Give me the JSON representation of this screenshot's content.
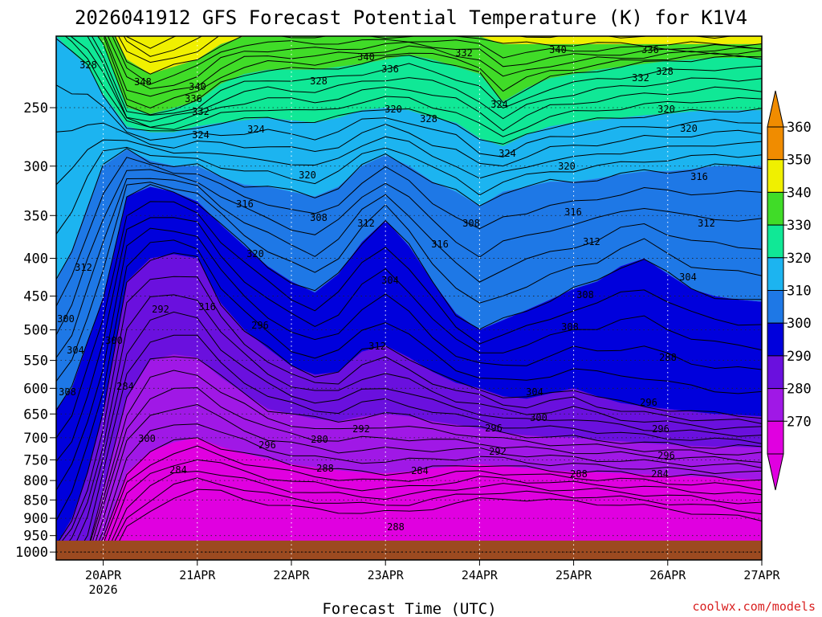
{
  "chart_data": {
    "type": "heatmap",
    "title": "2026041912 GFS Forecast Potential Temperature (K) for K1V4",
    "xlabel": "Forecast Time (UTC)",
    "ylabel": "",
    "credit": "coolwx.com/models",
    "x_ticks": [
      {
        "label": "20APR",
        "sub": "2026",
        "t": 12
      },
      {
        "label": "21APR",
        "sub": "",
        "t": 36
      },
      {
        "label": "22APR",
        "sub": "",
        "t": 60
      },
      {
        "label": "23APR",
        "sub": "",
        "t": 84
      },
      {
        "label": "24APR",
        "sub": "",
        "t": 108
      },
      {
        "label": "25APR",
        "sub": "",
        "t": 132
      },
      {
        "label": "26APR",
        "sub": "",
        "t": 156
      },
      {
        "label": "27APR",
        "sub": "",
        "t": 180
      }
    ],
    "xlim_hours": [
      0,
      180
    ],
    "y_ticks": [
      250,
      300,
      350,
      400,
      450,
      500,
      550,
      600,
      650,
      700,
      750,
      800,
      850,
      900,
      950,
      1000
    ],
    "ylim_hPa": [
      200,
      1025
    ],
    "y_scale": "log-pressure",
    "colorbar": {
      "levels": [
        270,
        280,
        290,
        300,
        310,
        320,
        330,
        340,
        350,
        360
      ],
      "colors": [
        "#e000e0",
        "#a018e6",
        "#6a10de",
        "#0000dc",
        "#1e78e6",
        "#1cb4f0",
        "#10e896",
        "#40dc28",
        "#f0f000",
        "#f08c00"
      ],
      "under_color": "#e000e0",
      "over_color": "#f08c00"
    },
    "ground": {
      "color": "#9c4a20",
      "top_pressure_hPa": 965
    },
    "contour_interval_K": 2,
    "contour_labels": [
      "328",
      "348",
      "340",
      "336",
      "332",
      "340",
      "336",
      "332",
      "340",
      "336",
      "332",
      "328",
      "328",
      "324",
      "320",
      "328",
      "324",
      "320",
      "320",
      "324",
      "320",
      "324",
      "320",
      "316",
      "316",
      "316",
      "308",
      "312",
      "308",
      "316",
      "312",
      "312",
      "312",
      "320",
      "304",
      "304",
      "308",
      "316",
      "292",
      "296",
      "300",
      "308",
      "304",
      "312",
      "288",
      "300",
      "304",
      "308",
      "284",
      "296",
      "300",
      "296",
      "300",
      "280",
      "292",
      "296",
      "296",
      "292",
      "296",
      "284",
      "288",
      "288",
      "284",
      "284",
      "288",
      "292",
      "276",
      "280"
    ],
    "profiles": [
      {
        "t": 0,
        "p": {
          "270": null,
          "280": null,
          "290": null,
          "300": 980,
          "310": 640,
          "320": 430,
          "330": 200,
          "340": 180,
          "350": 170,
          "360": 160
        }
      },
      {
        "t": 4,
        "p": {
          "270": null,
          "280": null,
          "290": null,
          "300": 900,
          "310": 600,
          "320": 390,
          "330": 210,
          "340": 185,
          "350": 170,
          "360": 160
        }
      },
      {
        "t": 8,
        "p": {
          "270": null,
          "280": null,
          "290": 990,
          "300": 780,
          "310": 520,
          "320": 340,
          "330": 220,
          "340": 190,
          "350": 175,
          "360": 165
        }
      },
      {
        "t": 12,
        "p": {
          "270": null,
          "280": 960,
          "290": 820,
          "300": 650,
          "310": 450,
          "320": 300,
          "330": 240,
          "340": 205,
          "350": 185,
          "360": 170
        }
      },
      {
        "t": 18,
        "p": {
          "270": 930,
          "280": 780,
          "290": 620,
          "300": 430,
          "310": 330,
          "320": 285,
          "330": 265,
          "340": 250,
          "350": 215,
          "360": 190
        }
      },
      {
        "t": 24,
        "p": {
          "270": 880,
          "280": 730,
          "290": 550,
          "300": 400,
          "310": 320,
          "320": 295,
          "330": 270,
          "340": 255,
          "350": 225,
          "360": 195
        }
      },
      {
        "t": 30,
        "p": {
          "270": 840,
          "280": 710,
          "290": 540,
          "300": 395,
          "310": 325,
          "320": 300,
          "330": 270,
          "340": 250,
          "350": 220,
          "360": 190
        }
      },
      {
        "t": 36,
        "p": {
          "270": 825,
          "280": 700,
          "290": 545,
          "300": 400,
          "310": 335,
          "320": 300,
          "330": 265,
          "340": 245,
          "350": 215,
          "360": 185
        }
      },
      {
        "t": 42,
        "p": {
          "270": 830,
          "280": 720,
          "290": 580,
          "300": 460,
          "310": 360,
          "320": 310,
          "330": 262,
          "340": 232,
          "350": 205,
          "360": 180
        }
      },
      {
        "t": 48,
        "p": {
          "270": 845,
          "280": 735,
          "290": 610,
          "300": 500,
          "310": 385,
          "320": 318,
          "330": 260,
          "340": 225,
          "350": 200,
          "360": 180
        }
      },
      {
        "t": 54,
        "p": {
          "270": 860,
          "280": 748,
          "290": 640,
          "300": 530,
          "310": 410,
          "320": 320,
          "330": 258,
          "340": 222,
          "350": 200,
          "360": 180
        }
      },
      {
        "t": 60,
        "p": {
          "270": 870,
          "280": 760,
          "290": 650,
          "300": 560,
          "310": 430,
          "320": 325,
          "330": 260,
          "340": 222,
          "350": 200,
          "360": 180
        }
      },
      {
        "t": 66,
        "p": {
          "270": 875,
          "280": 768,
          "290": 660,
          "300": 575,
          "310": 445,
          "320": 330,
          "330": 262,
          "340": 222,
          "350": 200,
          "360": 180
        }
      },
      {
        "t": 72,
        "p": {
          "270": 880,
          "280": 775,
          "290": 665,
          "300": 570,
          "310": 420,
          "320": 320,
          "330": 258,
          "340": 220,
          "350": 200,
          "360": 180
        }
      },
      {
        "t": 78,
        "p": {
          "270": 885,
          "280": 780,
          "290": 655,
          "300": 535,
          "310": 380,
          "320": 300,
          "330": 252,
          "340": 218,
          "350": 200,
          "360": 180
        }
      },
      {
        "t": 84,
        "p": {
          "270": 885,
          "280": 782,
          "290": 650,
          "300": 525,
          "310": 355,
          "320": 290,
          "330": 250,
          "340": 215,
          "350": 200,
          "360": 180
        }
      },
      {
        "t": 90,
        "p": {
          "270": 880,
          "280": 778,
          "290": 655,
          "300": 545,
          "310": 385,
          "320": 300,
          "330": 252,
          "340": 212,
          "350": 200,
          "360": 180
        }
      },
      {
        "t": 96,
        "p": {
          "270": 870,
          "280": 770,
          "290": 665,
          "300": 570,
          "310": 430,
          "320": 315,
          "330": 258,
          "340": 215,
          "350": 200,
          "360": 180
        }
      },
      {
        "t": 102,
        "p": {
          "270": 860,
          "280": 765,
          "290": 672,
          "300": 590,
          "310": 475,
          "320": 325,
          "330": 262,
          "340": 220,
          "350": 200,
          "360": 180
        }
      },
      {
        "t": 108,
        "p": {
          "270": 850,
          "280": 760,
          "290": 680,
          "300": 600,
          "310": 500,
          "320": 340,
          "330": 275,
          "340": 225,
          "350": 200,
          "360": 180
        }
      },
      {
        "t": 114,
        "p": {
          "270": 845,
          "280": 765,
          "290": 690,
          "300": 615,
          "310": 485,
          "320": 325,
          "330": 282,
          "340": 245,
          "350": 205,
          "360": 180
        }
      },
      {
        "t": 120,
        "p": {
          "270": 848,
          "280": 770,
          "290": 695,
          "300": 620,
          "310": 470,
          "320": 320,
          "330": 272,
          "340": 235,
          "350": 205,
          "360": 180
        }
      },
      {
        "t": 126,
        "p": {
          "270": 852,
          "280": 775,
          "290": 698,
          "300": 610,
          "310": 455,
          "320": 315,
          "330": 265,
          "340": 228,
          "350": 205,
          "360": 180
        }
      },
      {
        "t": 132,
        "p": {
          "270": 855,
          "280": 778,
          "290": 700,
          "300": 600,
          "310": 440,
          "320": 315,
          "330": 262,
          "340": 225,
          "350": 205,
          "360": 180
        }
      },
      {
        "t": 138,
        "p": {
          "270": 858,
          "280": 780,
          "290": 705,
          "300": 615,
          "310": 430,
          "320": 312,
          "330": 260,
          "340": 222,
          "350": 205,
          "360": 180
        }
      },
      {
        "t": 144,
        "p": {
          "270": 862,
          "280": 782,
          "290": 708,
          "300": 628,
          "310": 410,
          "320": 308,
          "330": 258,
          "340": 220,
          "350": 205,
          "360": 180
        }
      },
      {
        "t": 150,
        "p": {
          "270": 868,
          "280": 785,
          "290": 712,
          "300": 635,
          "310": 400,
          "320": 305,
          "330": 256,
          "340": 218,
          "350": 205,
          "360": 180
        }
      },
      {
        "t": 156,
        "p": {
          "270": 875,
          "280": 788,
          "290": 715,
          "300": 640,
          "310": 420,
          "320": 305,
          "330": 255,
          "340": 216,
          "350": 205,
          "360": 180
        }
      },
      {
        "t": 162,
        "p": {
          "270": 882,
          "280": 790,
          "290": 718,
          "300": 645,
          "310": 440,
          "320": 303,
          "330": 253,
          "340": 215,
          "350": 205,
          "360": 180
        }
      },
      {
        "t": 168,
        "p": {
          "270": 890,
          "280": 792,
          "290": 720,
          "300": 650,
          "310": 450,
          "320": 300,
          "330": 252,
          "340": 214,
          "350": 205,
          "360": 180
        }
      },
      {
        "t": 174,
        "p": {
          "270": 898,
          "280": 795,
          "290": 720,
          "300": 652,
          "310": 455,
          "320": 300,
          "330": 252,
          "340": 214,
          "350": 205,
          "360": 180
        }
      },
      {
        "t": 180,
        "p": {
          "270": 905,
          "280": 798,
          "290": 722,
          "300": 655,
          "310": 458,
          "320": 300,
          "330": 252,
          "340": 214,
          "350": 205,
          "360": 180
        }
      }
    ]
  }
}
